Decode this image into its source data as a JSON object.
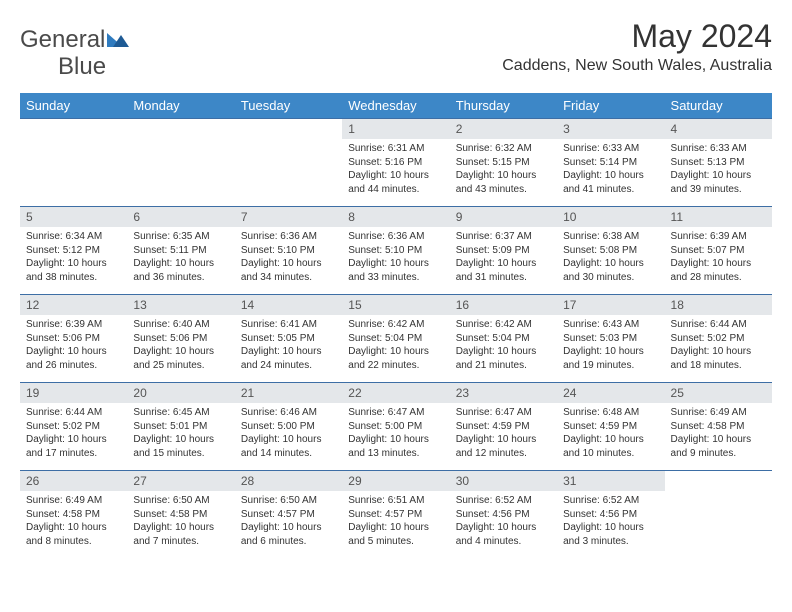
{
  "brand": {
    "part1": "General",
    "part2": "Blue"
  },
  "colors": {
    "header_bg": "#3d87c7",
    "header_text": "#ffffff",
    "daynum_bg": "#e4e7ea",
    "row_border": "#3d6ea5",
    "logo_blue": "#2f7bbf",
    "text": "#333333"
  },
  "title": "May 2024",
  "location": "Caddens, New South Wales, Australia",
  "weekdays": [
    "Sunday",
    "Monday",
    "Tuesday",
    "Wednesday",
    "Thursday",
    "Friday",
    "Saturday"
  ],
  "weeks": [
    [
      {
        "n": "",
        "sr": "",
        "ss": "",
        "dl": ""
      },
      {
        "n": "",
        "sr": "",
        "ss": "",
        "dl": ""
      },
      {
        "n": "",
        "sr": "",
        "ss": "",
        "dl": ""
      },
      {
        "n": "1",
        "sr": "Sunrise: 6:31 AM",
        "ss": "Sunset: 5:16 PM",
        "dl": "Daylight: 10 hours and 44 minutes."
      },
      {
        "n": "2",
        "sr": "Sunrise: 6:32 AM",
        "ss": "Sunset: 5:15 PM",
        "dl": "Daylight: 10 hours and 43 minutes."
      },
      {
        "n": "3",
        "sr": "Sunrise: 6:33 AM",
        "ss": "Sunset: 5:14 PM",
        "dl": "Daylight: 10 hours and 41 minutes."
      },
      {
        "n": "4",
        "sr": "Sunrise: 6:33 AM",
        "ss": "Sunset: 5:13 PM",
        "dl": "Daylight: 10 hours and 39 minutes."
      }
    ],
    [
      {
        "n": "5",
        "sr": "Sunrise: 6:34 AM",
        "ss": "Sunset: 5:12 PM",
        "dl": "Daylight: 10 hours and 38 minutes."
      },
      {
        "n": "6",
        "sr": "Sunrise: 6:35 AM",
        "ss": "Sunset: 5:11 PM",
        "dl": "Daylight: 10 hours and 36 minutes."
      },
      {
        "n": "7",
        "sr": "Sunrise: 6:36 AM",
        "ss": "Sunset: 5:10 PM",
        "dl": "Daylight: 10 hours and 34 minutes."
      },
      {
        "n": "8",
        "sr": "Sunrise: 6:36 AM",
        "ss": "Sunset: 5:10 PM",
        "dl": "Daylight: 10 hours and 33 minutes."
      },
      {
        "n": "9",
        "sr": "Sunrise: 6:37 AM",
        "ss": "Sunset: 5:09 PM",
        "dl": "Daylight: 10 hours and 31 minutes."
      },
      {
        "n": "10",
        "sr": "Sunrise: 6:38 AM",
        "ss": "Sunset: 5:08 PM",
        "dl": "Daylight: 10 hours and 30 minutes."
      },
      {
        "n": "11",
        "sr": "Sunrise: 6:39 AM",
        "ss": "Sunset: 5:07 PM",
        "dl": "Daylight: 10 hours and 28 minutes."
      }
    ],
    [
      {
        "n": "12",
        "sr": "Sunrise: 6:39 AM",
        "ss": "Sunset: 5:06 PM",
        "dl": "Daylight: 10 hours and 26 minutes."
      },
      {
        "n": "13",
        "sr": "Sunrise: 6:40 AM",
        "ss": "Sunset: 5:06 PM",
        "dl": "Daylight: 10 hours and 25 minutes."
      },
      {
        "n": "14",
        "sr": "Sunrise: 6:41 AM",
        "ss": "Sunset: 5:05 PM",
        "dl": "Daylight: 10 hours and 24 minutes."
      },
      {
        "n": "15",
        "sr": "Sunrise: 6:42 AM",
        "ss": "Sunset: 5:04 PM",
        "dl": "Daylight: 10 hours and 22 minutes."
      },
      {
        "n": "16",
        "sr": "Sunrise: 6:42 AM",
        "ss": "Sunset: 5:04 PM",
        "dl": "Daylight: 10 hours and 21 minutes."
      },
      {
        "n": "17",
        "sr": "Sunrise: 6:43 AM",
        "ss": "Sunset: 5:03 PM",
        "dl": "Daylight: 10 hours and 19 minutes."
      },
      {
        "n": "18",
        "sr": "Sunrise: 6:44 AM",
        "ss": "Sunset: 5:02 PM",
        "dl": "Daylight: 10 hours and 18 minutes."
      }
    ],
    [
      {
        "n": "19",
        "sr": "Sunrise: 6:44 AM",
        "ss": "Sunset: 5:02 PM",
        "dl": "Daylight: 10 hours and 17 minutes."
      },
      {
        "n": "20",
        "sr": "Sunrise: 6:45 AM",
        "ss": "Sunset: 5:01 PM",
        "dl": "Daylight: 10 hours and 15 minutes."
      },
      {
        "n": "21",
        "sr": "Sunrise: 6:46 AM",
        "ss": "Sunset: 5:00 PM",
        "dl": "Daylight: 10 hours and 14 minutes."
      },
      {
        "n": "22",
        "sr": "Sunrise: 6:47 AM",
        "ss": "Sunset: 5:00 PM",
        "dl": "Daylight: 10 hours and 13 minutes."
      },
      {
        "n": "23",
        "sr": "Sunrise: 6:47 AM",
        "ss": "Sunset: 4:59 PM",
        "dl": "Daylight: 10 hours and 12 minutes."
      },
      {
        "n": "24",
        "sr": "Sunrise: 6:48 AM",
        "ss": "Sunset: 4:59 PM",
        "dl": "Daylight: 10 hours and 10 minutes."
      },
      {
        "n": "25",
        "sr": "Sunrise: 6:49 AM",
        "ss": "Sunset: 4:58 PM",
        "dl": "Daylight: 10 hours and 9 minutes."
      }
    ],
    [
      {
        "n": "26",
        "sr": "Sunrise: 6:49 AM",
        "ss": "Sunset: 4:58 PM",
        "dl": "Daylight: 10 hours and 8 minutes."
      },
      {
        "n": "27",
        "sr": "Sunrise: 6:50 AM",
        "ss": "Sunset: 4:58 PM",
        "dl": "Daylight: 10 hours and 7 minutes."
      },
      {
        "n": "28",
        "sr": "Sunrise: 6:50 AM",
        "ss": "Sunset: 4:57 PM",
        "dl": "Daylight: 10 hours and 6 minutes."
      },
      {
        "n": "29",
        "sr": "Sunrise: 6:51 AM",
        "ss": "Sunset: 4:57 PM",
        "dl": "Daylight: 10 hours and 5 minutes."
      },
      {
        "n": "30",
        "sr": "Sunrise: 6:52 AM",
        "ss": "Sunset: 4:56 PM",
        "dl": "Daylight: 10 hours and 4 minutes."
      },
      {
        "n": "31",
        "sr": "Sunrise: 6:52 AM",
        "ss": "Sunset: 4:56 PM",
        "dl": "Daylight: 10 hours and 3 minutes."
      },
      {
        "n": "",
        "sr": "",
        "ss": "",
        "dl": ""
      }
    ]
  ]
}
